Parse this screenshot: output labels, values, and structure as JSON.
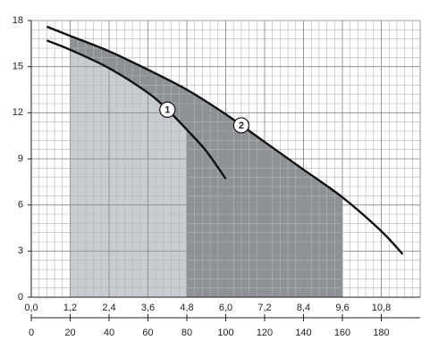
{
  "chart_data": {
    "type": "line",
    "series": [
      {
        "name": "1",
        "color": "#111111",
        "x": [
          8,
          20,
          40,
          60,
          70,
          80,
          90,
          100
        ],
        "values": [
          16.7,
          16.1,
          14.9,
          13.3,
          12.2,
          10.9,
          9.5,
          7.7
        ]
      },
      {
        "name": "2",
        "color": "#111111",
        "x": [
          8,
          20,
          40,
          60,
          80,
          100,
          120,
          140,
          160,
          180,
          191
        ],
        "values": [
          17.6,
          17.0,
          16.0,
          14.8,
          13.5,
          11.9,
          10.1,
          8.3,
          6.5,
          4.3,
          2.8
        ]
      }
    ],
    "bands": [
      {
        "series": 1,
        "x": [
          20,
          160
        ],
        "color": "#8e9296"
      },
      {
        "series": 0,
        "x": [
          20,
          80
        ],
        "color": "#c9cdd1"
      }
    ],
    "xlim": [
      0,
      200
    ],
    "xticks": [
      0,
      20,
      40,
      60,
      80,
      100,
      120,
      140,
      160,
      180
    ],
    "x2lim": [
      0,
      12
    ],
    "x2ticks": [
      {
        "value": 0,
        "label": "0,0"
      },
      {
        "value": 1.2,
        "label": "1,2"
      },
      {
        "value": 2.4,
        "label": "2,4"
      },
      {
        "value": 3.6,
        "label": "3,6"
      },
      {
        "value": 4.8,
        "label": "4,8"
      },
      {
        "value": 6.0,
        "label": "6,0"
      },
      {
        "value": 7.2,
        "label": "7,2"
      },
      {
        "value": 8.4,
        "label": "8,4"
      },
      {
        "value": 9.6,
        "label": "9,6"
      },
      {
        "value": 10.8,
        "label": "10,8"
      }
    ],
    "ylim": [
      0,
      18
    ],
    "yticks": [
      0,
      3,
      6,
      9,
      12,
      15,
      18
    ],
    "grid": true
  }
}
